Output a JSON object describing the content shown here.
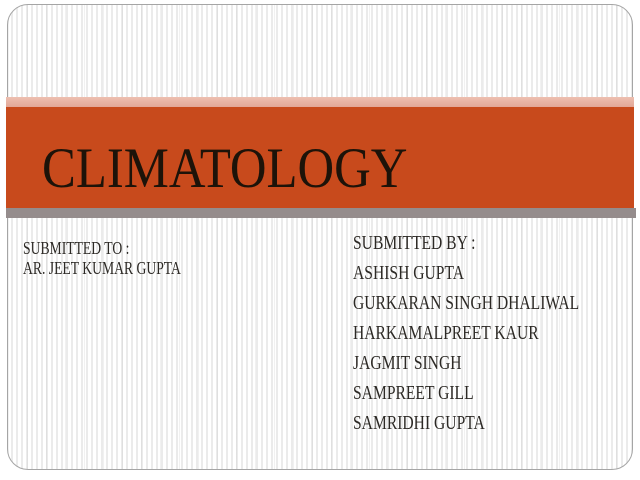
{
  "slide": {
    "title": "CLIMATOLOGY",
    "submitted_to": {
      "heading": "SUBMITTED TO :",
      "lines": [
        "AR. JEET KUMAR GUPTA"
      ]
    },
    "submitted_by": {
      "heading": "SUBMITTED BY :",
      "lines": [
        "ASHISH GUPTA",
        "GURKARAN SINGH DHALIWAL",
        "HARKAMALPREET KAUR",
        "JAGMIT SINGH",
        "SAMPREET GILL",
        "SAMRIDHI GUPTA"
      ]
    },
    "colors": {
      "band_orange": "#c84a1c",
      "band_pink": "#e8b4a4",
      "bar_gray": "#958c8c",
      "frame_border": "#a5a5a5",
      "title_text": "#1d1309",
      "body_text": "#2c2925"
    }
  }
}
